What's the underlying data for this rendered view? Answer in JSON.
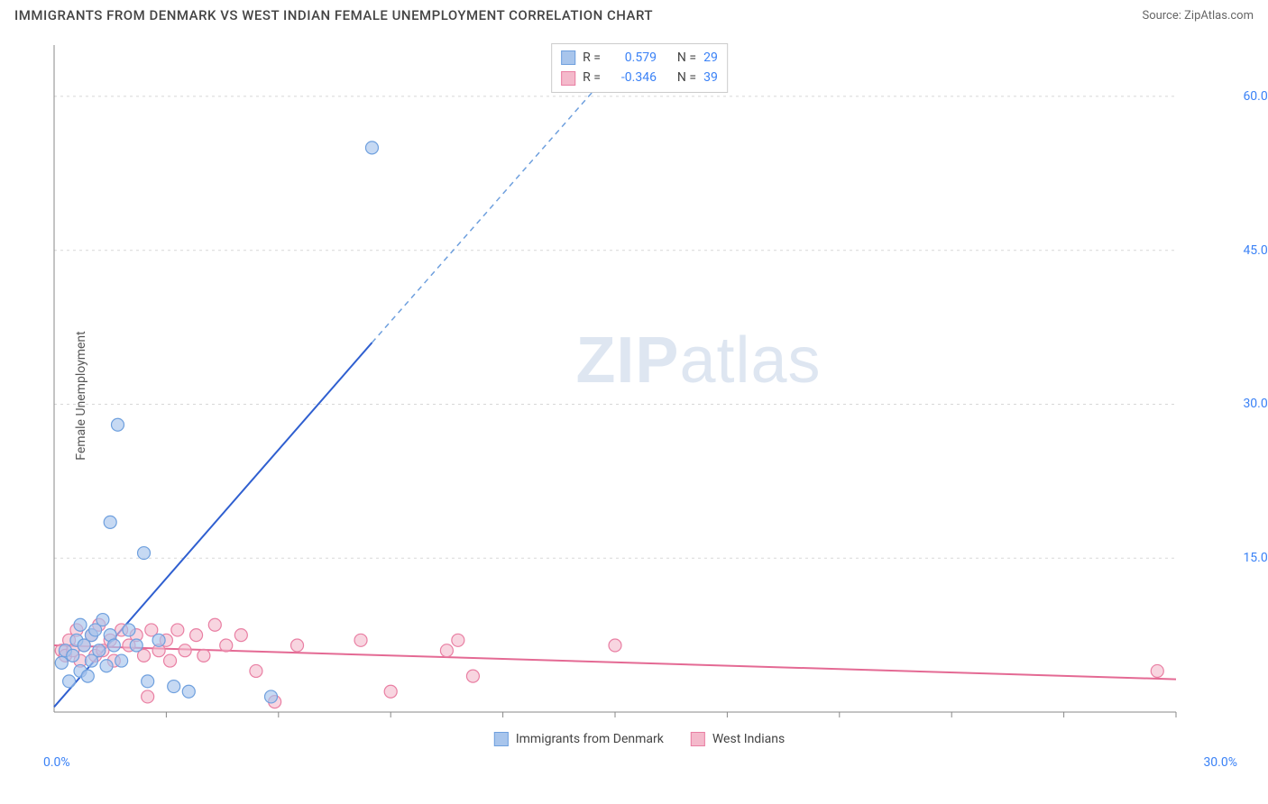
{
  "title": "IMMIGRANTS FROM DENMARK VS WEST INDIAN FEMALE UNEMPLOYMENT CORRELATION CHART",
  "source_label": "Source: ",
  "source_name": "ZipAtlas.com",
  "y_axis_label": "Female Unemployment",
  "watermark_zip": "ZIP",
  "watermark_atlas": "atlas",
  "chart": {
    "type": "scatter-correlation",
    "xlim": [
      0,
      30
    ],
    "ylim": [
      0,
      65
    ],
    "y_ticks": [
      15,
      30,
      45,
      60
    ],
    "y_tick_labels": [
      "15.0%",
      "30.0%",
      "45.0%",
      "60.0%"
    ],
    "x_ticks": [
      3,
      6,
      9,
      12,
      15,
      18,
      21,
      24,
      27,
      30
    ],
    "x_label_start": "0.0%",
    "x_label_end": "30.0%",
    "grid_color": "#d8d8d8",
    "axis_color": "#888888",
    "background_color": "#ffffff",
    "series": [
      {
        "name": "Immigrants from Denmark",
        "color_fill": "#a8c5ec",
        "color_stroke": "#6fa0de",
        "marker_radius": 7,
        "marker_opacity": 0.65,
        "r_value": "0.579",
        "n_value": "29",
        "trend": {
          "p1": [
            0,
            0.5
          ],
          "p2": [
            8.5,
            36
          ],
          "color": "#2f5fd0",
          "width": 2
        },
        "trend_extend": {
          "p1": [
            8.5,
            36
          ],
          "p2": [
            15.5,
            65
          ],
          "color": "#6fa0de",
          "width": 1.5,
          "dash": "6,5"
        },
        "points": [
          [
            0.2,
            4.8
          ],
          [
            0.3,
            6.0
          ],
          [
            0.4,
            3.0
          ],
          [
            0.5,
            5.5
          ],
          [
            0.6,
            7.0
          ],
          [
            0.7,
            4.0
          ],
          [
            0.7,
            8.5
          ],
          [
            0.8,
            6.5
          ],
          [
            0.9,
            3.5
          ],
          [
            1.0,
            7.5
          ],
          [
            1.0,
            5.0
          ],
          [
            1.1,
            8.0
          ],
          [
            1.2,
            6.0
          ],
          [
            1.3,
            9.0
          ],
          [
            1.4,
            4.5
          ],
          [
            1.5,
            7.5
          ],
          [
            1.5,
            18.5
          ],
          [
            1.6,
            6.5
          ],
          [
            1.7,
            28.0
          ],
          [
            1.8,
            5.0
          ],
          [
            2.0,
            8.0
          ],
          [
            2.2,
            6.5
          ],
          [
            2.4,
            15.5
          ],
          [
            2.5,
            3.0
          ],
          [
            2.8,
            7.0
          ],
          [
            3.2,
            2.5
          ],
          [
            3.6,
            2.0
          ],
          [
            5.8,
            1.5
          ],
          [
            8.5,
            55.0
          ]
        ]
      },
      {
        "name": "West Indians",
        "color_fill": "#f4b9cb",
        "color_stroke": "#e97fa3",
        "marker_radius": 7,
        "marker_opacity": 0.6,
        "r_value": "-0.346",
        "n_value": "39",
        "trend": {
          "p1": [
            0,
            6.5
          ],
          "p2": [
            30,
            3.2
          ],
          "color": "#e46a94",
          "width": 2
        },
        "points": [
          [
            0.2,
            6.0
          ],
          [
            0.3,
            5.5
          ],
          [
            0.4,
            7.0
          ],
          [
            0.5,
            6.0
          ],
          [
            0.6,
            8.0
          ],
          [
            0.7,
            5.0
          ],
          [
            0.8,
            6.5
          ],
          [
            1.0,
            7.5
          ],
          [
            1.1,
            5.5
          ],
          [
            1.2,
            8.5
          ],
          [
            1.3,
            6.0
          ],
          [
            1.5,
            7.0
          ],
          [
            1.6,
            5.0
          ],
          [
            1.8,
            8.0
          ],
          [
            2.0,
            6.5
          ],
          [
            2.2,
            7.5
          ],
          [
            2.4,
            5.5
          ],
          [
            2.5,
            1.5
          ],
          [
            2.6,
            8.0
          ],
          [
            2.8,
            6.0
          ],
          [
            3.0,
            7.0
          ],
          [
            3.1,
            5.0
          ],
          [
            3.3,
            8.0
          ],
          [
            3.5,
            6.0
          ],
          [
            3.8,
            7.5
          ],
          [
            4.0,
            5.5
          ],
          [
            4.3,
            8.5
          ],
          [
            4.6,
            6.5
          ],
          [
            5.0,
            7.5
          ],
          [
            5.4,
            4.0
          ],
          [
            5.9,
            1.0
          ],
          [
            6.5,
            6.5
          ],
          [
            8.2,
            7.0
          ],
          [
            9.0,
            2.0
          ],
          [
            10.5,
            6.0
          ],
          [
            10.8,
            7.0
          ],
          [
            11.2,
            3.5
          ],
          [
            15.0,
            6.5
          ],
          [
            29.5,
            4.0
          ]
        ]
      }
    ]
  },
  "stats_box": {
    "r_label": "R =",
    "n_label": "N ="
  },
  "bottom_legend": {
    "series1": "Immigrants from Denmark",
    "series2": "West Indians"
  }
}
